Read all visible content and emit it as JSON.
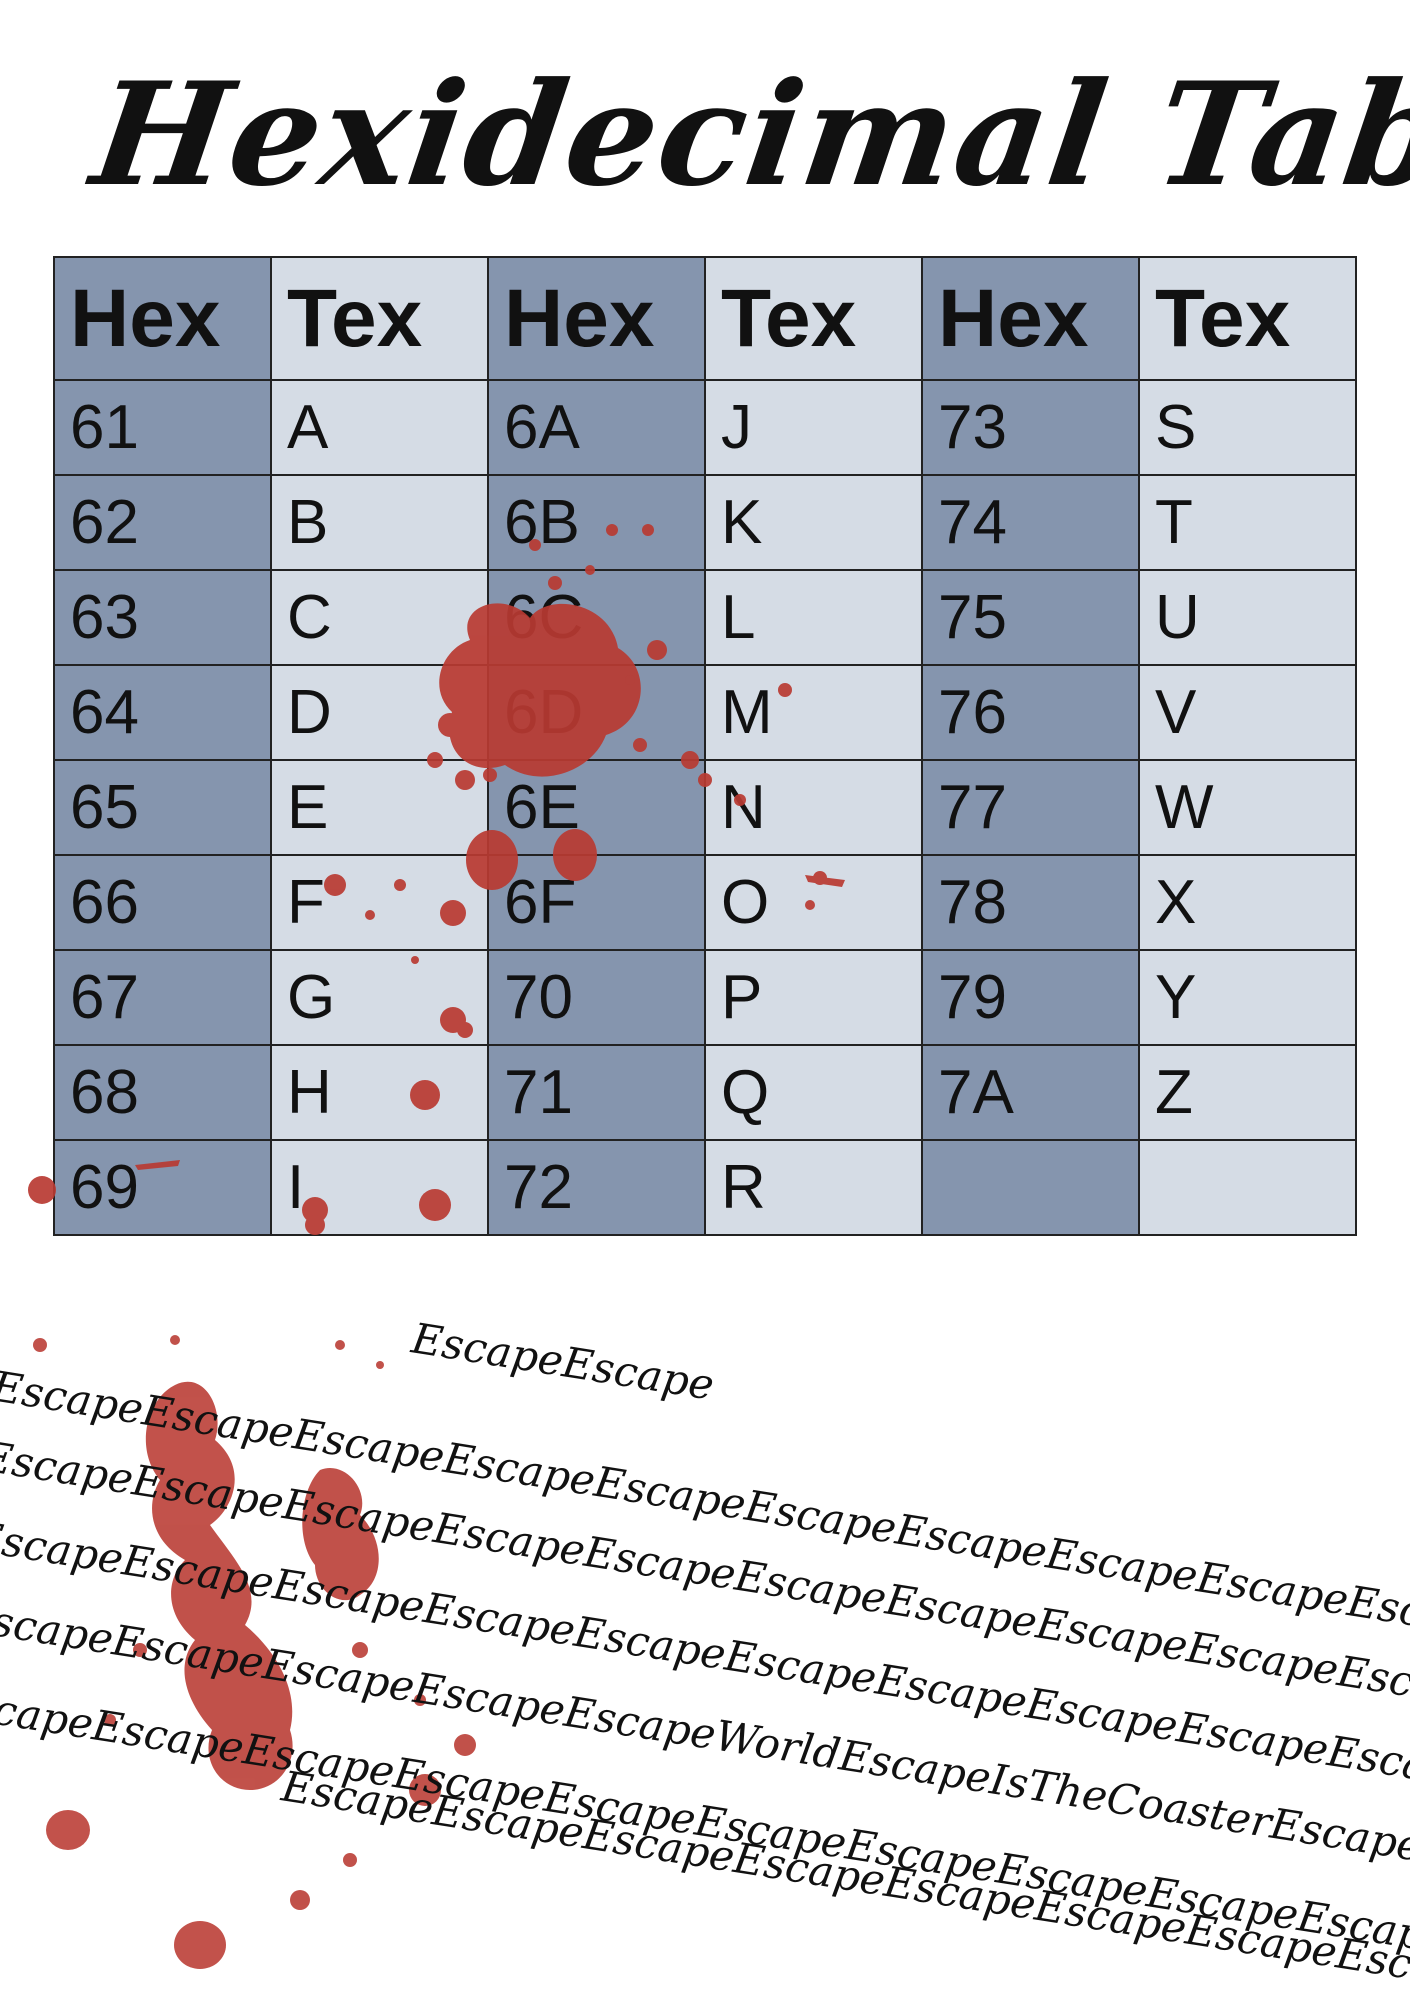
{
  "title": "Hexidecimal Table",
  "table": {
    "headers": [
      "Hex",
      "Tex",
      "Hex",
      "Tex",
      "Hex",
      "Tex"
    ],
    "rows": [
      [
        "61",
        "A",
        "6A",
        "J",
        "73",
        "S"
      ],
      [
        "62",
        "B",
        "6B",
        "K",
        "74",
        "T"
      ],
      [
        "63",
        "C",
        "6C",
        "L",
        "75",
        "U"
      ],
      [
        "64",
        "D",
        "6D",
        "M",
        "76",
        "V"
      ],
      [
        "65",
        "E",
        "6E",
        "N",
        "77",
        "W"
      ],
      [
        "66",
        "F",
        "6F",
        "O",
        "78",
        "X"
      ],
      [
        "67",
        "G",
        "70",
        "P",
        "79",
        "Y"
      ],
      [
        "68",
        "H",
        "71",
        "Q",
        "7A",
        "Z"
      ],
      [
        "69",
        "I",
        "72",
        "R",
        "",
        ""
      ]
    ]
  },
  "escape_text": [
    "EscapeEscape",
    "EscapeEscapeEscapeEscapeEscapeEscapeEscapeEscapeEscapeEsc",
    "EscapeEscapeEscapeEscapeEscapeEscapeEscapeEscapeEscapeEscapeEscape",
    "EscapeEscapeEscapeEscapeEscapeEscapeEscapeEscapeEscapeEscapeEscapeEsc",
    "EscapeEscapeEscapeEscapeEscapeWorldEscapeIsTheCoasterEscapeEscapeEscape",
    "EscapeEscapeEscapeEscapeEscapeEscapeEscapeEscapeEscapeEscapeEscape",
    "EscapeEscapeEscapeEscapeEscapeEscapeEscapeEscapeEscapeEscapeEsc"
  ],
  "colors": {
    "hex_column": "#8595ae",
    "tex_column": "#d5dce5",
    "blood": "#b93a32"
  }
}
